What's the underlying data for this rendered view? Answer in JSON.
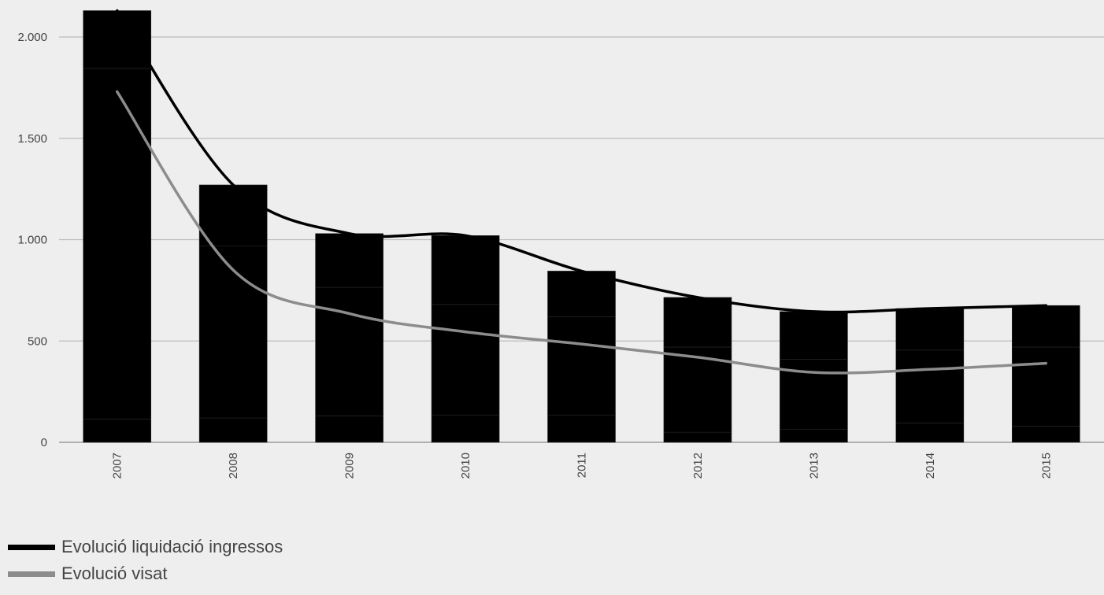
{
  "chart_data": {
    "type": "bar",
    "categories": [
      "2007",
      "2008",
      "2009",
      "2010",
      "2011",
      "2012",
      "2013",
      "2014",
      "2015"
    ],
    "bar_values": [
      2130,
      1270,
      1030,
      1020,
      845,
      715,
      645,
      660,
      675
    ],
    "bar_segments": [
      [
        115,
        1730,
        285
      ],
      [
        120,
        850,
        300
      ],
      [
        130,
        635,
        265
      ],
      [
        135,
        545,
        340
      ],
      [
        135,
        485,
        225
      ],
      [
        50,
        420,
        245
      ],
      [
        65,
        345,
        235
      ],
      [
        95,
        360,
        205
      ],
      [
        80,
        390,
        205
      ]
    ],
    "series": [
      {
        "name": "Evolució liquidació ingressos",
        "values": [
          2130,
          1270,
          1030,
          1020,
          845,
          715,
          645,
          660,
          675
        ],
        "color": "#000000"
      },
      {
        "name": "Evolució visat",
        "values": [
          1730,
          850,
          635,
          545,
          485,
          420,
          345,
          360,
          390
        ],
        "color": "#8c8c8c"
      }
    ],
    "yticks": [
      0,
      500,
      1000,
      1500,
      2000
    ],
    "ytick_labels": [
      "0",
      "500",
      "1.000",
      "1.500",
      "2.000"
    ],
    "ylim": [
      0,
      2140
    ],
    "bar_color": "#000000",
    "grid": true,
    "legend_position": "bottom-left"
  }
}
